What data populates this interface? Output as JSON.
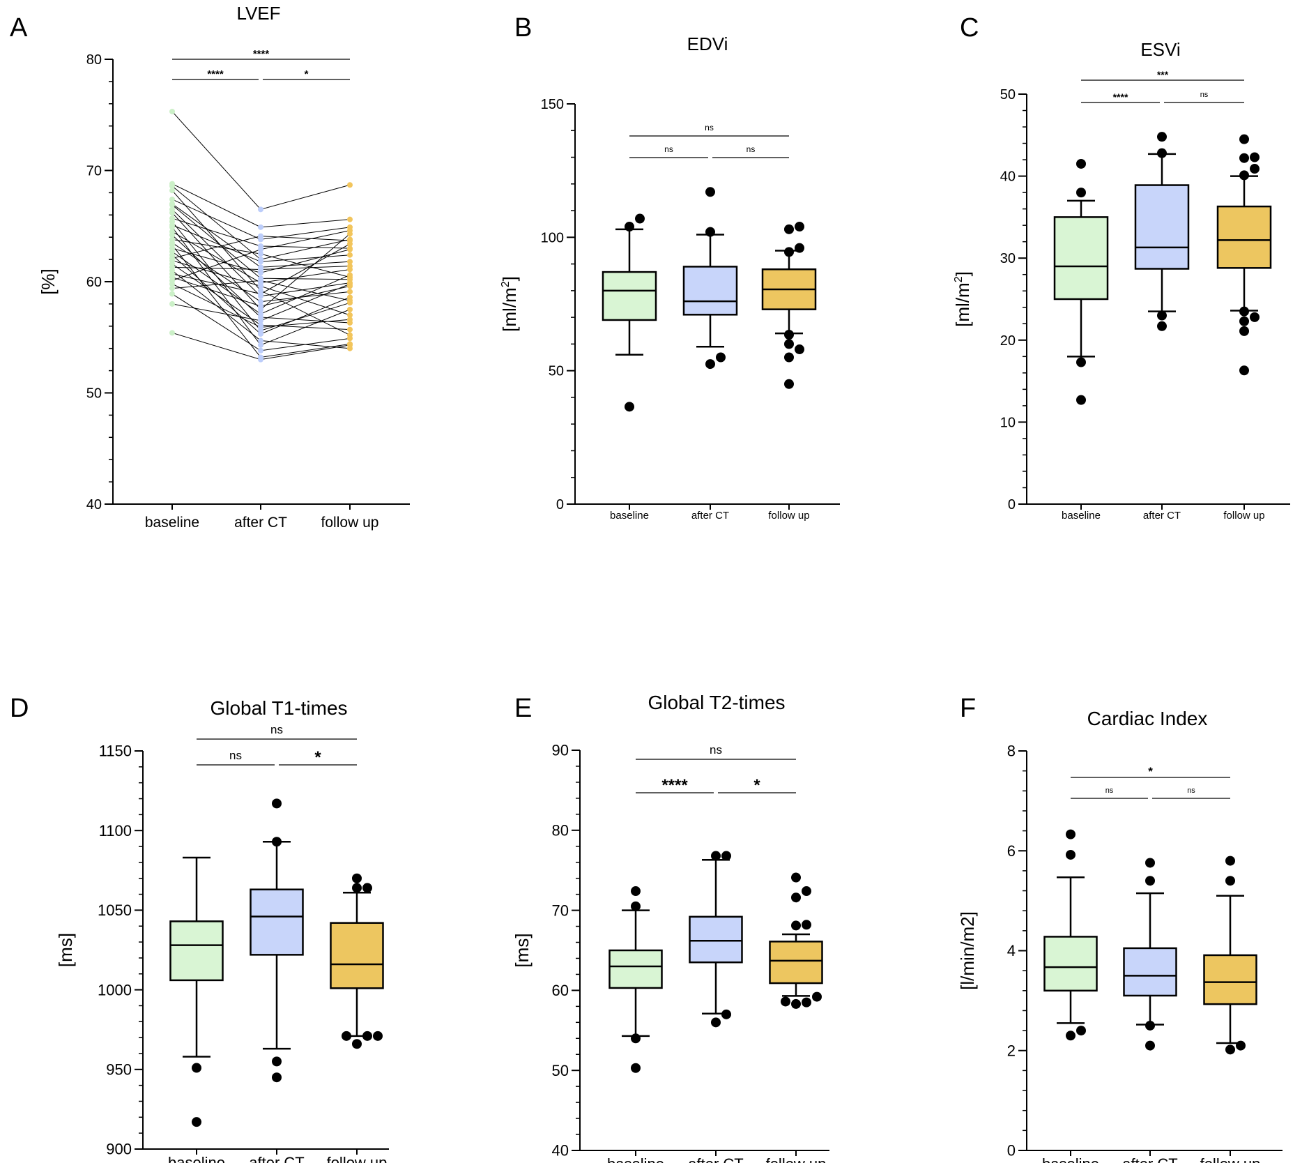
{
  "chart_data": [
    {
      "panel": "A",
      "title": "LVEF",
      "type": "line",
      "categories": [
        "baseline",
        "after CT",
        "follow up"
      ],
      "ylabel": "[%]",
      "ylabel_sup": "",
      "ylim": [
        40,
        80
      ],
      "yticks": [
        40,
        50,
        60,
        70,
        80
      ],
      "ytick_labels": [
        "40",
        "50",
        "60",
        "70",
        "80"
      ],
      "colors": [
        "#ccf0c8",
        "#bccdfa",
        "#f2c55c"
      ],
      "subjects": [
        [
          75.3,
          66.5,
          68.7
        ],
        [
          68.8,
          64.9,
          65.6
        ],
        [
          68.6,
          62.0,
          63.8
        ],
        [
          68.2,
          59.2,
          55.2
        ],
        [
          67.4,
          63.8,
          64.9
        ],
        [
          67.0,
          61.3,
          61.8
        ],
        [
          66.9,
          60.3,
          60.2
        ],
        [
          66.5,
          58.7,
          59.9
        ],
        [
          66.2,
          57.5,
          64.3
        ],
        [
          65.7,
          63.2,
          63.0
        ],
        [
          65.4,
          55.6,
          58.1
        ],
        [
          65.1,
          61.8,
          62.4
        ],
        [
          64.9,
          54.3,
          57.5
        ],
        [
          64.5,
          59.9,
          61.1
        ],
        [
          64.2,
          56.8,
          56.3
        ],
        [
          63.8,
          62.5,
          60.4
        ],
        [
          63.5,
          58.2,
          59.1
        ],
        [
          63.3,
          53.2,
          54.4
        ],
        [
          63.0,
          60.8,
          62.9
        ],
        [
          62.7,
          57.1,
          60.6
        ],
        [
          62.4,
          55.3,
          58.6
        ],
        [
          62.1,
          64.1,
          63.7
        ],
        [
          61.9,
          59.6,
          57.0
        ],
        [
          61.6,
          56.1,
          55.7
        ],
        [
          61.3,
          61.1,
          61.4
        ],
        [
          61.0,
          54.7,
          54.0
        ],
        [
          60.7,
          58.9,
          63.4
        ],
        [
          60.4,
          57.8,
          59.6
        ],
        [
          60.1,
          62.9,
          64.6
        ],
        [
          59.8,
          55.9,
          56.6
        ],
        [
          59.4,
          60.1,
          58.3
        ],
        [
          58.9,
          53.8,
          54.9
        ],
        [
          58.0,
          56.5,
          59.8
        ],
        [
          55.4,
          53.0,
          54.3
        ]
      ],
      "brackets": [
        {
          "from": 0,
          "to": 2,
          "label": "****",
          "level": 2
        },
        {
          "from": 0,
          "to": 1,
          "label": "****",
          "level": 1
        },
        {
          "from": 1,
          "to": 2,
          "label": "*",
          "level": 1
        }
      ]
    },
    {
      "panel": "B",
      "title": "EDVi",
      "type": "box",
      "categories": [
        "baseline",
        "after CT",
        "follow up"
      ],
      "ylabel": "[ml/m",
      "ylabel_sup": "2",
      "ylabel_end": "]",
      "ylim": [
        0,
        150
      ],
      "yticks": [
        0,
        50,
        100,
        150
      ],
      "ytick_labels": [
        "0",
        "50",
        "100",
        "150"
      ],
      "colors": [
        "#d9f5d4",
        "#c8d5fa",
        "#edc660"
      ],
      "boxes": [
        {
          "q1": 69,
          "median": 80,
          "q3": 87,
          "whisker_low": 56,
          "whisker_high": 103,
          "outliers": [
            36.5,
            104,
            107
          ]
        },
        {
          "q1": 71,
          "median": 76,
          "q3": 89,
          "whisker_low": 59,
          "whisker_high": 101,
          "outliers": [
            52.5,
            55,
            102,
            117
          ]
        },
        {
          "q1": 73,
          "median": 80.5,
          "q3": 88,
          "whisker_low": 64,
          "whisker_high": 95,
          "outliers": [
            45,
            55,
            58,
            60,
            63.5,
            94.5,
            96,
            103,
            104
          ]
        }
      ],
      "brackets": [
        {
          "from": 0,
          "to": 2,
          "label": "ns",
          "level": 2
        },
        {
          "from": 0,
          "to": 1,
          "label": "ns",
          "level": 1
        },
        {
          "from": 1,
          "to": 2,
          "label": "ns",
          "level": 1
        }
      ]
    },
    {
      "panel": "C",
      "title": "ESVi",
      "type": "box",
      "categories": [
        "baseline",
        "after CT",
        "follow up"
      ],
      "ylabel": "[ml/m",
      "ylabel_sup": "2",
      "ylabel_end": "]",
      "ylim": [
        0,
        50
      ],
      "yticks": [
        0,
        10,
        20,
        30,
        40,
        50
      ],
      "ytick_labels": [
        "0",
        "10",
        "20",
        "30",
        "40",
        "50"
      ],
      "colors": [
        "#d9f5d4",
        "#c8d5fa",
        "#edc660"
      ],
      "boxes": [
        {
          "q1": 25,
          "median": 29,
          "q3": 35,
          "whisker_low": 18,
          "whisker_high": 37,
          "outliers": [
            12.7,
            17.3,
            38,
            41.5
          ]
        },
        {
          "q1": 28.7,
          "median": 31.3,
          "q3": 38.9,
          "whisker_low": 23.5,
          "whisker_high": 42.7,
          "outliers": [
            21.7,
            23,
            42.8,
            44.8
          ]
        },
        {
          "q1": 28.8,
          "median": 32.2,
          "q3": 36.3,
          "whisker_low": 23.6,
          "whisker_high": 40,
          "outliers": [
            16.3,
            21.1,
            22.3,
            22.8,
            23.5,
            40.1,
            40.9,
            42.2,
            42.3,
            44.5
          ]
        }
      ],
      "brackets": [
        {
          "from": 0,
          "to": 2,
          "label": "***",
          "level": 2
        },
        {
          "from": 0,
          "to": 1,
          "label": "****",
          "level": 1
        },
        {
          "from": 1,
          "to": 2,
          "label": "ns",
          "level": 1
        }
      ]
    },
    {
      "panel": "D",
      "title": "Global T1-times",
      "type": "box",
      "categories": [
        "baseline",
        "after CT",
        "follow up"
      ],
      "ylabel": "[ms]",
      "ylabel_sup": "",
      "ylim": [
        900,
        1150
      ],
      "yticks": [
        900,
        950,
        1000,
        1050,
        1100,
        1150
      ],
      "ytick_labels": [
        "900",
        "950",
        "1000",
        "1050",
        "1100",
        "1150"
      ],
      "colors": [
        "#d9f5d4",
        "#c8d5fa",
        "#edc660"
      ],
      "boxes": [
        {
          "q1": 1006,
          "median": 1028,
          "q3": 1043,
          "whisker_low": 958,
          "whisker_high": 1083,
          "outliers": [
            917,
            951
          ]
        },
        {
          "q1": 1022,
          "median": 1046,
          "q3": 1063,
          "whisker_low": 963,
          "whisker_high": 1093,
          "outliers": [
            945,
            955,
            1093,
            1117
          ]
        },
        {
          "q1": 1001,
          "median": 1016,
          "q3": 1042,
          "whisker_low": 971,
          "whisker_high": 1061,
          "outliers": [
            966,
            971,
            971,
            971,
            1064,
            1064,
            1070
          ]
        }
      ],
      "brackets": [
        {
          "from": 0,
          "to": 2,
          "label": "ns",
          "level": 2
        },
        {
          "from": 0,
          "to": 1,
          "label": "ns",
          "level": 1
        },
        {
          "from": 1,
          "to": 2,
          "label": "*",
          "level": 1
        }
      ]
    },
    {
      "panel": "E",
      "title": "Global T2-times",
      "type": "box",
      "categories": [
        "baseline",
        "after CT",
        "follow up"
      ],
      "ylabel": "[ms]",
      "ylabel_sup": "",
      "ylim": [
        40,
        90
      ],
      "yticks": [
        40,
        50,
        60,
        70,
        80,
        90
      ],
      "ytick_labels": [
        "40",
        "50",
        "60",
        "70",
        "80",
        "90"
      ],
      "colors": [
        "#d9f5d4",
        "#c8d5fa",
        "#edc660"
      ],
      "boxes": [
        {
          "q1": 60.3,
          "median": 63,
          "q3": 65,
          "whisker_low": 54.3,
          "whisker_high": 70,
          "outliers": [
            50.3,
            54,
            70.5,
            72.4
          ]
        },
        {
          "q1": 63.5,
          "median": 66.2,
          "q3": 69.2,
          "whisker_low": 57.1,
          "whisker_high": 76.3,
          "outliers": [
            56,
            57,
            76.8,
            76.8
          ]
        },
        {
          "q1": 60.9,
          "median": 63.7,
          "q3": 66.1,
          "whisker_low": 59.3,
          "whisker_high": 67,
          "outliers": [
            58.3,
            58.5,
            58.6,
            59.2,
            68.1,
            68.2,
            71.6,
            72.4,
            74.1
          ]
        }
      ],
      "brackets": [
        {
          "from": 0,
          "to": 2,
          "label": "ns",
          "level": 2
        },
        {
          "from": 0,
          "to": 1,
          "label": "****",
          "level": 1
        },
        {
          "from": 1,
          "to": 2,
          "label": "*",
          "level": 1
        }
      ]
    },
    {
      "panel": "F",
      "title": "Cardiac Index",
      "type": "box",
      "categories": [
        "baseline",
        "after CT",
        "follow up"
      ],
      "ylabel": "[l/min/m2]",
      "ylabel_sup": "",
      "ylim": [
        0,
        8
      ],
      "yticks": [
        0,
        2,
        4,
        6,
        8
      ],
      "ytick_labels": [
        "0",
        "2",
        "4",
        "6",
        "8"
      ],
      "colors": [
        "#d9f5d4",
        "#c8d5fa",
        "#edc660"
      ],
      "boxes": [
        {
          "q1": 3.2,
          "median": 3.67,
          "q3": 4.28,
          "whisker_low": 2.55,
          "whisker_high": 5.47,
          "outliers": [
            2.3,
            2.4,
            5.92,
            6.33
          ]
        },
        {
          "q1": 3.1,
          "median": 3.5,
          "q3": 4.05,
          "whisker_low": 2.52,
          "whisker_high": 5.15,
          "outliers": [
            2.1,
            2.5,
            5.4,
            5.76
          ]
        },
        {
          "q1": 2.93,
          "median": 3.37,
          "q3": 3.91,
          "whisker_low": 2.15,
          "whisker_high": 5.1,
          "outliers": [
            2.02,
            2.1,
            5.4,
            5.8
          ]
        }
      ],
      "brackets": [
        {
          "from": 0,
          "to": 2,
          "label": "*",
          "level": 2
        },
        {
          "from": 0,
          "to": 1,
          "label": "ns",
          "level": 1
        },
        {
          "from": 1,
          "to": 2,
          "label": "ns",
          "level": 1
        }
      ]
    }
  ]
}
